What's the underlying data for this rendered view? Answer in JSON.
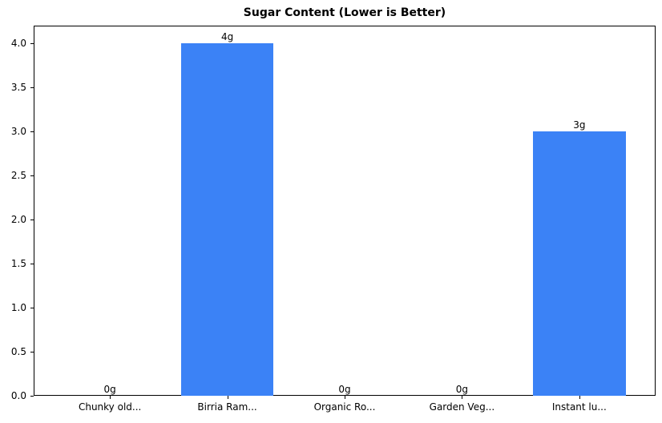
{
  "chart_data": {
    "type": "bar",
    "title": "Sugar Content (Lower is Better)",
    "xlabel": "",
    "ylabel": "",
    "categories": [
      "Chunky old...",
      "Birria Ram...",
      "Organic Ro...",
      "Garden Veg...",
      "Instant lu..."
    ],
    "values": [
      0,
      4,
      0,
      0,
      3
    ],
    "value_labels": [
      "0g",
      "4g",
      "0g",
      "0g",
      "3g"
    ],
    "ylim": [
      0,
      4.2
    ],
    "yticks": [
      "0.0",
      "0.5",
      "1.0",
      "1.5",
      "2.0",
      "2.5",
      "3.0",
      "3.5",
      "4.0"
    ],
    "grid": false,
    "legend": null,
    "bar_color": "#3b82f6"
  }
}
